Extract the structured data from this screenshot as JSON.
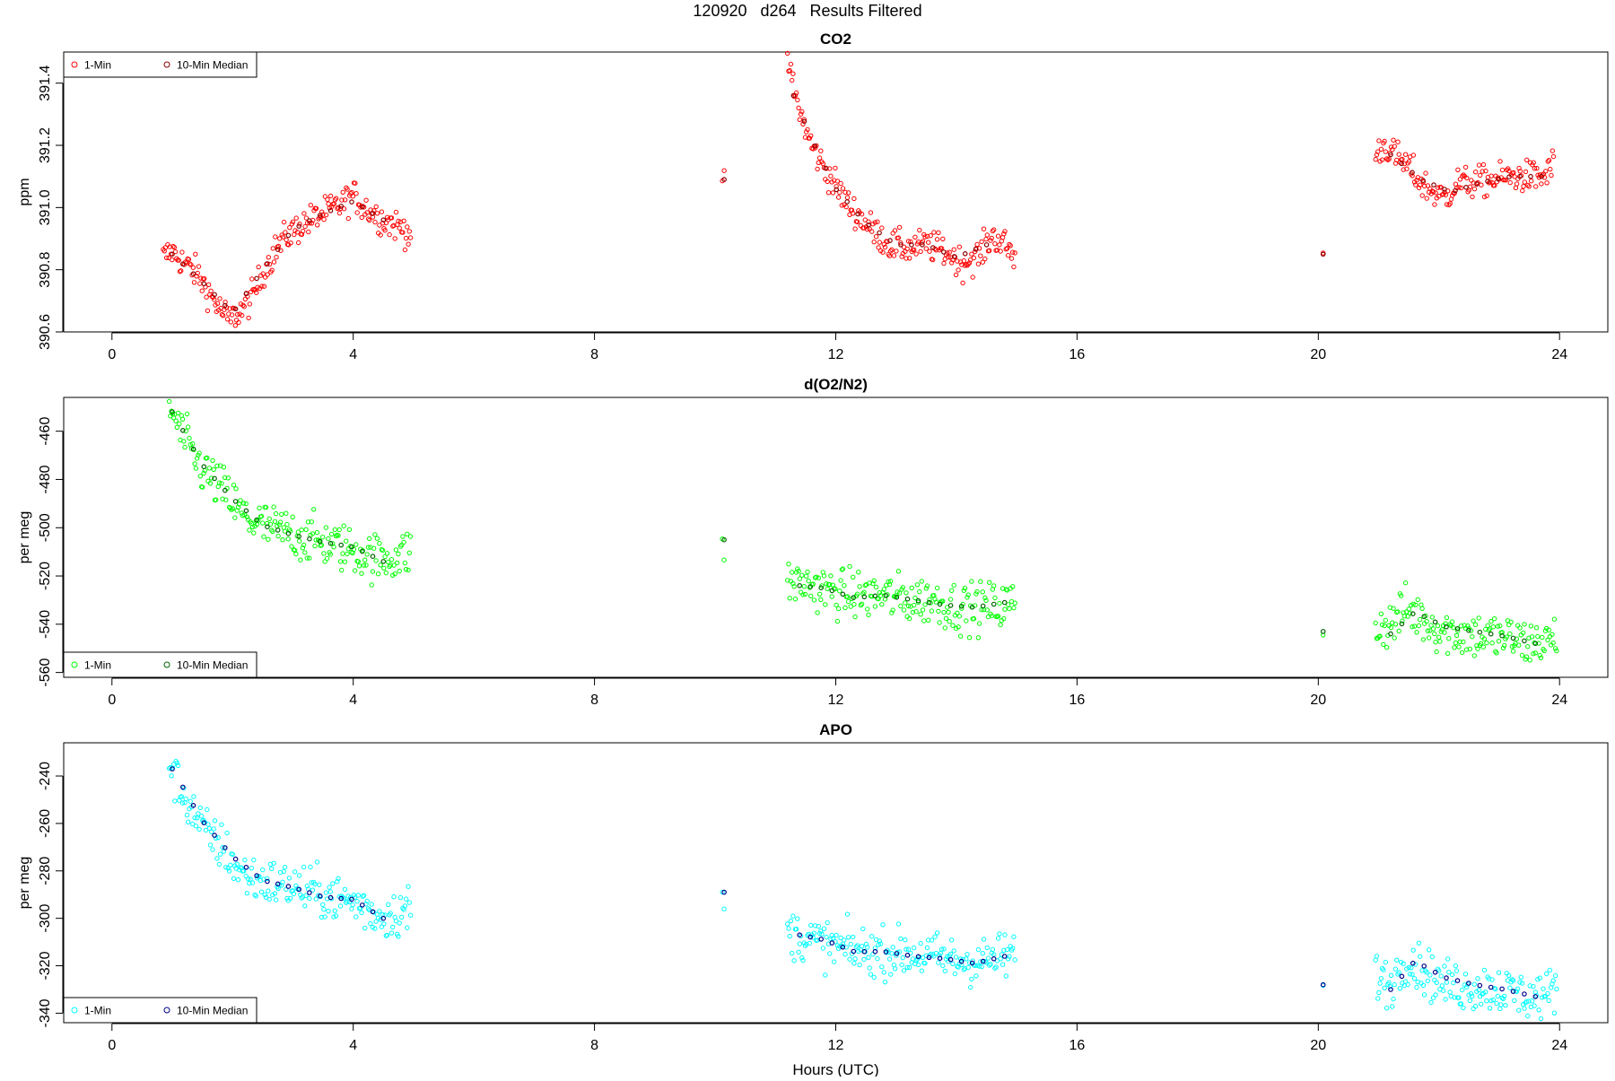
{
  "page_title": "120920   d264   Results Filtered",
  "chart_data": [
    {
      "type": "scatter",
      "title": "CO2",
      "xlabel": "",
      "ylabel": "ppm",
      "xlim": [
        -0.8,
        24.8
      ],
      "ylim": [
        390.6,
        391.5
      ],
      "xticks": [
        0,
        4,
        8,
        12,
        16,
        20,
        24
      ],
      "yticks": [
        390.6,
        390.8,
        391.0,
        391.2,
        391.4
      ],
      "legend_position": "top-left",
      "legend": [
        "1-Min",
        "10-Min Median"
      ],
      "colors": {
        "one_min": "#ff0000",
        "median": "#8b0000"
      },
      "segments_one_min": [
        [
          [
            0.85,
            390.84
          ],
          [
            1.0,
            390.86
          ],
          [
            1.2,
            390.82
          ],
          [
            1.4,
            390.79
          ],
          [
            1.6,
            390.73
          ],
          [
            1.8,
            390.67
          ],
          [
            1.95,
            390.64
          ],
          [
            2.15,
            390.67
          ],
          [
            2.35,
            390.72
          ],
          [
            2.5,
            390.79
          ],
          [
            2.7,
            390.86
          ],
          [
            2.9,
            390.91
          ],
          [
            3.2,
            390.95
          ],
          [
            3.5,
            390.98
          ],
          [
            3.8,
            391.01
          ],
          [
            4.0,
            391.04
          ],
          [
            4.2,
            391.0
          ],
          [
            4.5,
            390.96
          ],
          [
            4.75,
            390.94
          ],
          [
            4.95,
            390.92
          ]
        ],
        [
          [
            10.12,
            391.08
          ],
          [
            10.15,
            391.1
          ]
        ],
        [
          [
            11.2,
            391.48
          ],
          [
            11.3,
            391.38
          ],
          [
            11.45,
            391.28
          ],
          [
            11.6,
            391.2
          ],
          [
            11.8,
            391.13
          ],
          [
            12.0,
            391.07
          ],
          [
            12.2,
            391.01
          ],
          [
            12.4,
            390.97
          ],
          [
            12.6,
            390.93
          ],
          [
            12.9,
            390.88
          ],
          [
            13.2,
            390.87
          ],
          [
            13.5,
            390.88
          ],
          [
            13.8,
            390.86
          ],
          [
            14.1,
            390.82
          ],
          [
            14.4,
            390.85
          ],
          [
            14.6,
            390.91
          ],
          [
            14.8,
            390.88
          ],
          [
            14.97,
            390.84
          ]
        ],
        [
          [
            20.08,
            390.85
          ]
        ],
        [
          [
            20.95,
            391.17
          ],
          [
            21.1,
            391.2
          ],
          [
            21.3,
            391.16
          ],
          [
            21.5,
            391.13
          ],
          [
            21.7,
            391.08
          ],
          [
            21.9,
            391.05
          ],
          [
            22.1,
            391.03
          ],
          [
            22.3,
            391.08
          ],
          [
            22.6,
            391.08
          ],
          [
            22.9,
            391.09
          ],
          [
            23.2,
            391.1
          ],
          [
            23.5,
            391.1
          ],
          [
            23.75,
            391.1
          ],
          [
            23.9,
            391.14
          ]
        ]
      ],
      "segments_median": [
        [
          [
            1.0,
            390.85
          ],
          [
            1.5,
            390.76
          ],
          [
            2.0,
            390.66
          ],
          [
            2.5,
            390.8
          ],
          [
            3.0,
            390.93
          ],
          [
            3.5,
            390.98
          ],
          [
            4.0,
            391.02
          ],
          [
            4.5,
            390.96
          ]
        ],
        [
          [
            10.15,
            391.09
          ]
        ],
        [
          [
            11.3,
            391.36
          ],
          [
            11.6,
            391.22
          ],
          [
            12.0,
            391.06
          ],
          [
            12.5,
            390.95
          ],
          [
            13.0,
            390.88
          ],
          [
            13.5,
            390.88
          ],
          [
            14.0,
            390.84
          ],
          [
            14.5,
            390.88
          ]
        ],
        [
          [
            20.08,
            390.85
          ]
        ],
        [
          [
            21.2,
            391.17
          ],
          [
            21.7,
            391.09
          ],
          [
            22.2,
            391.05
          ],
          [
            22.7,
            391.08
          ],
          [
            23.2,
            391.1
          ],
          [
            23.7,
            391.1
          ]
        ]
      ],
      "noise": 0.025
    },
    {
      "type": "scatter",
      "title": "d(O2/N2)",
      "xlabel": "",
      "ylabel": "per meg",
      "xlim": [
        -0.8,
        24.8
      ],
      "ylim": [
        -562,
        -446
      ],
      "xticks": [
        0,
        4,
        8,
        12,
        16,
        20,
        24
      ],
      "yticks": [
        -560,
        -540,
        -520,
        -500,
        -480,
        -460
      ],
      "legend_position": "bottom-left",
      "legend": [
        "1-Min",
        "10-Min Median"
      ],
      "colors": {
        "one_min": "#00ff00",
        "median": "#006400"
      },
      "segments_one_min": [
        [
          [
            0.95,
            -450
          ],
          [
            1.1,
            -458
          ],
          [
            1.3,
            -468
          ],
          [
            1.5,
            -476
          ],
          [
            1.7,
            -481
          ],
          [
            1.9,
            -486
          ],
          [
            2.1,
            -493
          ],
          [
            2.3,
            -497
          ],
          [
            2.6,
            -500
          ],
          [
            2.9,
            -502
          ],
          [
            3.2,
            -504
          ],
          [
            3.5,
            -506
          ],
          [
            3.8,
            -508
          ],
          [
            4.1,
            -510
          ],
          [
            4.4,
            -513
          ],
          [
            4.7,
            -512
          ],
          [
            4.95,
            -510
          ]
        ],
        [
          [
            10.12,
            -505
          ],
          [
            10.15,
            -512
          ]
        ],
        [
          [
            11.2,
            -522
          ],
          [
            11.6,
            -524
          ],
          [
            12.0,
            -527
          ],
          [
            12.4,
            -528
          ],
          [
            12.8,
            -528
          ],
          [
            13.2,
            -530
          ],
          [
            13.6,
            -530
          ],
          [
            14.0,
            -533
          ],
          [
            14.4,
            -533
          ],
          [
            14.8,
            -532
          ],
          [
            14.97,
            -531
          ]
        ],
        [
          [
            20.08,
            -543
          ]
        ],
        [
          [
            20.95,
            -541
          ],
          [
            21.2,
            -540
          ],
          [
            21.45,
            -534
          ],
          [
            21.7,
            -537
          ],
          [
            22.0,
            -542
          ],
          [
            22.4,
            -544
          ],
          [
            22.8,
            -545
          ],
          [
            23.2,
            -546
          ],
          [
            23.5,
            -548
          ],
          [
            23.8,
            -547
          ],
          [
            23.95,
            -546
          ]
        ]
      ],
      "segments_median": [
        [
          [
            1.0,
            -452
          ],
          [
            1.5,
            -474
          ],
          [
            2.0,
            -488
          ],
          [
            2.5,
            -499
          ],
          [
            3.0,
            -503
          ],
          [
            3.5,
            -506
          ],
          [
            4.0,
            -508
          ],
          [
            4.5,
            -514
          ]
        ],
        [
          [
            10.15,
            -505
          ]
        ],
        [
          [
            11.4,
            -524
          ],
          [
            11.8,
            -525
          ],
          [
            12.3,
            -529
          ],
          [
            12.8,
            -528
          ],
          [
            13.3,
            -530
          ],
          [
            13.8,
            -532
          ],
          [
            14.3,
            -533
          ],
          [
            14.8,
            -531
          ]
        ],
        [
          [
            20.08,
            -543
          ]
        ],
        [
          [
            21.2,
            -544
          ],
          [
            21.6,
            -535
          ],
          [
            22.1,
            -541
          ],
          [
            22.6,
            -543
          ],
          [
            23.1,
            -545
          ],
          [
            23.6,
            -548
          ]
        ]
      ],
      "noise": 5
    },
    {
      "type": "scatter",
      "title": "APO",
      "xlabel": "Hours (UTC)",
      "ylabel": "per meg",
      "xlim": [
        -0.8,
        24.8
      ],
      "ylim": [
        -344,
        -226
      ],
      "xticks": [
        0,
        4,
        8,
        12,
        16,
        20,
        24
      ],
      "yticks": [
        -340,
        -320,
        -300,
        -280,
        -260,
        -240
      ],
      "legend_position": "bottom-left",
      "legend": [
        "1-Min",
        "10-Min Median"
      ],
      "colors": {
        "one_min": "#00ffff",
        "median": "#00008b"
      },
      "segments_one_min": [
        [
          [
            0.95,
            -235
          ],
          [
            1.1,
            -244
          ],
          [
            1.3,
            -253
          ],
          [
            1.5,
            -262
          ],
          [
            1.7,
            -267
          ],
          [
            1.9,
            -272
          ],
          [
            2.1,
            -280
          ],
          [
            2.3,
            -283
          ],
          [
            2.6,
            -285
          ],
          [
            2.9,
            -286
          ],
          [
            3.2,
            -288
          ],
          [
            3.5,
            -290
          ],
          [
            3.8,
            -292
          ],
          [
            4.1,
            -294
          ],
          [
            4.4,
            -299
          ],
          [
            4.7,
            -298
          ],
          [
            4.95,
            -296
          ]
        ],
        [
          [
            10.12,
            -289
          ],
          [
            10.15,
            -297
          ]
        ],
        [
          [
            11.2,
            -306
          ],
          [
            11.6,
            -309
          ],
          [
            12.0,
            -312
          ],
          [
            12.4,
            -314
          ],
          [
            12.8,
            -314
          ],
          [
            13.2,
            -315
          ],
          [
            13.6,
            -316
          ],
          [
            14.0,
            -318
          ],
          [
            14.4,
            -318
          ],
          [
            14.8,
            -316
          ],
          [
            14.97,
            -315
          ]
        ],
        [
          [
            20.08,
            -328
          ]
        ],
        [
          [
            20.95,
            -324
          ],
          [
            21.2,
            -328
          ],
          [
            21.45,
            -317
          ],
          [
            21.7,
            -321
          ],
          [
            22.0,
            -327
          ],
          [
            22.4,
            -329
          ],
          [
            22.8,
            -329
          ],
          [
            23.2,
            -331
          ],
          [
            23.5,
            -333
          ],
          [
            23.8,
            -332
          ],
          [
            23.95,
            -330
          ]
        ]
      ],
      "segments_median": [
        [
          [
            1.0,
            -237
          ],
          [
            1.5,
            -259
          ],
          [
            2.0,
            -274
          ],
          [
            2.5,
            -284
          ],
          [
            3.0,
            -287
          ],
          [
            3.5,
            -291
          ],
          [
            4.0,
            -292
          ],
          [
            4.5,
            -300
          ]
        ],
        [
          [
            10.15,
            -289
          ]
        ],
        [
          [
            11.4,
            -307
          ],
          [
            11.8,
            -309
          ],
          [
            12.3,
            -314
          ],
          [
            12.8,
            -314
          ],
          [
            13.3,
            -316
          ],
          [
            13.8,
            -317
          ],
          [
            14.3,
            -319
          ],
          [
            14.8,
            -316
          ]
        ],
        [
          [
            20.08,
            -328
          ]
        ],
        [
          [
            21.2,
            -330
          ],
          [
            21.6,
            -318
          ],
          [
            22.1,
            -325
          ],
          [
            22.6,
            -328
          ],
          [
            23.1,
            -330
          ],
          [
            23.6,
            -333
          ]
        ]
      ],
      "noise": 5
    }
  ]
}
